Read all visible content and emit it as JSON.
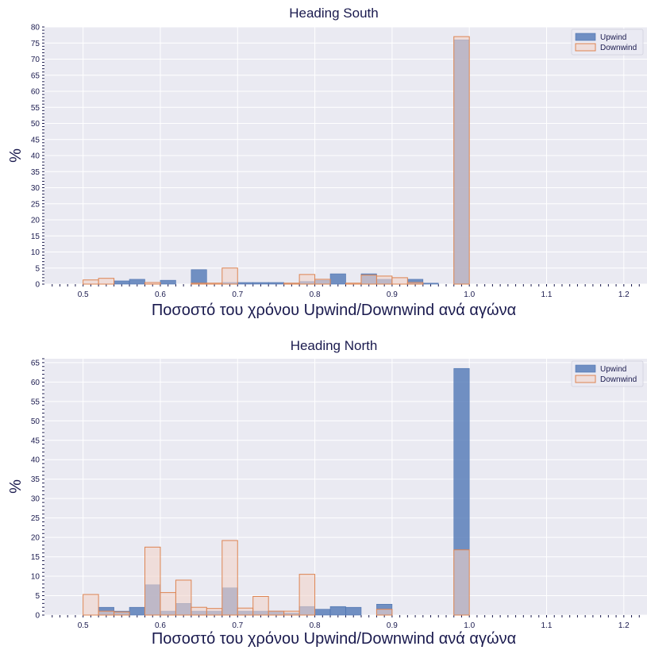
{
  "colors": {
    "plot_bg": "#eaeaf2",
    "grid": "#ffffff",
    "upwind_fill": "#5b7fba",
    "upwind_stroke": "#4c72b0",
    "downwind_fill": "#f2d4ca",
    "downwind_stroke": "#dd8452",
    "text": "#1a1a4e"
  },
  "chart_data": [
    {
      "type": "bar",
      "title": "Heading South",
      "xlabel": "Ποσοστό του χρόνου Upwind/Downwind ανά αγώνα",
      "ylabel": "%",
      "xlim": [
        0.45,
        1.23
      ],
      "ylim": [
        0,
        80
      ],
      "xticks": [
        0.5,
        0.6,
        0.7,
        0.8,
        0.9,
        1.0,
        1.1,
        1.2
      ],
      "xtick_labels": [
        "0.5",
        "0.6",
        "0.7",
        "0.8",
        "0.9",
        "1.0",
        "1.1",
        "1.2"
      ],
      "yticks": [
        0,
        5,
        10,
        15,
        20,
        25,
        30,
        35,
        40,
        45,
        50,
        55,
        60,
        65,
        70,
        75,
        80
      ],
      "ytick_labels": [
        "0",
        "5",
        "10",
        "15",
        "20",
        "25",
        "30",
        "35",
        "40",
        "45",
        "50",
        "55",
        "60",
        "65",
        "70",
        "75",
        "80"
      ],
      "grid": true,
      "legend_position": "top-right",
      "bin_width": 0.02,
      "series": [
        {
          "name": "Upwind",
          "bins": [
            0.54,
            0.56,
            0.6,
            0.64,
            0.68,
            0.7,
            0.72,
            0.74,
            0.76,
            0.78,
            0.8,
            0.82,
            0.86,
            0.88,
            0.92,
            0.94,
            0.98
          ],
          "values": [
            1.0,
            1.5,
            1.2,
            4.5,
            0.5,
            0.5,
            0.5,
            0.5,
            0.3,
            0.8,
            1.2,
            3.2,
            3.2,
            1.5,
            1.5,
            0.3,
            76.0
          ]
        },
        {
          "name": "Downwind",
          "bins": [
            0.5,
            0.52,
            0.58,
            0.64,
            0.66,
            0.68,
            0.76,
            0.78,
            0.8,
            0.84,
            0.86,
            0.88,
            0.9,
            0.92,
            0.98
          ],
          "values": [
            1.3,
            1.8,
            0.5,
            0.3,
            0.3,
            5.0,
            0.3,
            3.0,
            1.5,
            0.3,
            2.8,
            2.5,
            2.0,
            0.5,
            77.0
          ]
        }
      ]
    },
    {
      "type": "bar",
      "title": "Heading North",
      "xlabel": "Ποσοστό του χρόνου Upwind/Downwind ανά αγώνα",
      "ylabel": "%",
      "xlim": [
        0.45,
        1.23
      ],
      "ylim": [
        0,
        66
      ],
      "xticks": [
        0.5,
        0.6,
        0.7,
        0.8,
        0.9,
        1.0,
        1.1,
        1.2
      ],
      "xtick_labels": [
        "0.5",
        "0.6",
        "0.7",
        "0.8",
        "0.9",
        "1.0",
        "1.1",
        "1.2"
      ],
      "yticks": [
        0,
        5,
        10,
        15,
        20,
        25,
        30,
        35,
        40,
        45,
        50,
        55,
        60,
        65
      ],
      "ytick_labels": [
        "0",
        "5",
        "10",
        "15",
        "20",
        "25",
        "30",
        "35",
        "40",
        "45",
        "50",
        "55",
        "60",
        "65"
      ],
      "grid": true,
      "legend_position": "top-right",
      "bin_width": 0.02,
      "series": [
        {
          "name": "Upwind",
          "bins": [
            0.52,
            0.54,
            0.56,
            0.58,
            0.6,
            0.62,
            0.64,
            0.66,
            0.68,
            0.7,
            0.72,
            0.74,
            0.76,
            0.78,
            0.8,
            0.82,
            0.84,
            0.88,
            0.98
          ],
          "values": [
            2.0,
            1.0,
            2.0,
            7.8,
            1.0,
            3.0,
            1.0,
            1.0,
            7.0,
            1.0,
            1.0,
            1.0,
            0.5,
            2.2,
            1.5,
            2.2,
            2.0,
            2.8,
            63.5
          ]
        },
        {
          "name": "Downwind",
          "bins": [
            0.5,
            0.52,
            0.54,
            0.58,
            0.6,
            0.62,
            0.64,
            0.66,
            0.68,
            0.7,
            0.72,
            0.74,
            0.76,
            0.78,
            0.88,
            0.98
          ],
          "values": [
            5.3,
            1.0,
            0.8,
            17.5,
            5.8,
            9.0,
            2.0,
            1.7,
            19.2,
            1.8,
            4.8,
            1.0,
            1.0,
            10.5,
            1.5,
            16.8
          ]
        }
      ]
    }
  ]
}
